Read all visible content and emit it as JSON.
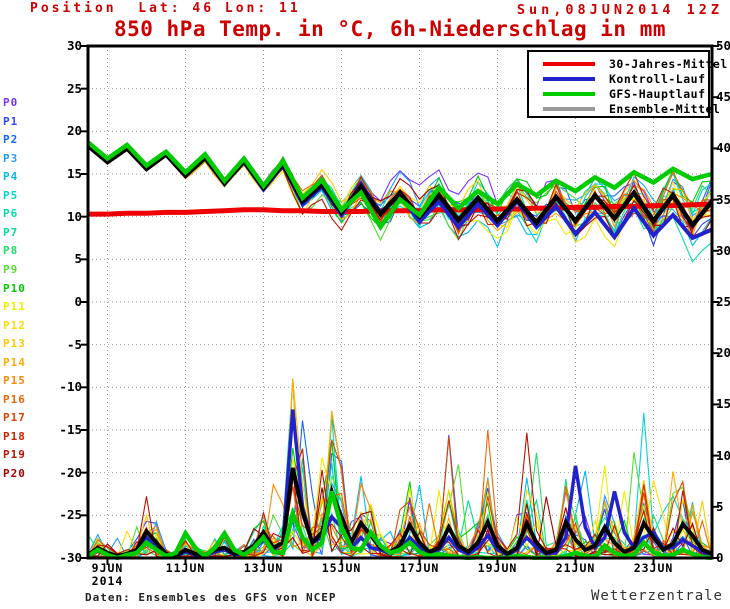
{
  "header": {
    "position_line": "Position  Lat: 46 Lon: 11",
    "datetime": "Sun,08JUN2014 12Z",
    "title": "850 hPa Temp. in °C, 6h-Niederschlag in mm",
    "text_color": "#cc0000"
  },
  "footer": {
    "source": "Daten: Ensembles des GFS von NCEP",
    "brand": "Wetterzentrale"
  },
  "legend": {
    "items": [
      {
        "label": "30-Jahres-Mittel",
        "color": "#ee0000"
      },
      {
        "label": "Kontroll-Lauf",
        "color": "#2222cc"
      },
      {
        "label": "GFS-Hauptlauf",
        "color": "#00cc00"
      },
      {
        "label": "Ensemble-Mittel",
        "color": "#999999"
      }
    ]
  },
  "members": {
    "labels": [
      "P0",
      "P1",
      "P2",
      "P3",
      "P4",
      "P5",
      "P6",
      "P7",
      "P8",
      "P9",
      "P10",
      "P11",
      "P12",
      "P13",
      "P14",
      "P15",
      "P16",
      "P17",
      "P18",
      "P19",
      "P20"
    ],
    "colors": [
      "#7733ff",
      "#3344ff",
      "#1166ff",
      "#2299ff",
      "#00bbee",
      "#00d5d5",
      "#00ddb0",
      "#00e090",
      "#22dd66",
      "#55dd33",
      "#00cc00",
      "#eeee00",
      "#ffdd00",
      "#ffc800",
      "#ffaa00",
      "#ff8800",
      "#f06600",
      "#e04400",
      "#cc2200",
      "#bb1100",
      "#a50000"
    ],
    "seed": 7
  },
  "chart_data": {
    "type": "line",
    "title": "850 hPa Temp. in °C, 6h-Niederschlag in mm",
    "x_start": "8JUN2014 12Z",
    "x_span_days": 16,
    "x_ticks": [
      "9JUN",
      "11JUN",
      "13JUN",
      "15JUN",
      "17JUN",
      "19JUN",
      "21JUN",
      "23JUN"
    ],
    "x_tick_year": "2014",
    "x_tick_day_offsets": [
      0.5,
      2.5,
      4.5,
      6.5,
      8.5,
      10.5,
      12.5,
      14.5
    ],
    "temp_axis": {
      "side": "left",
      "min": -30,
      "max": 30,
      "step": 5,
      "tick_labels": [
        "30",
        "25",
        "20",
        "15",
        "10",
        "5",
        "0",
        "-5",
        "-10",
        "-15",
        "-20",
        "-25",
        "-30"
      ]
    },
    "precip_axis": {
      "side": "right",
      "min": 0,
      "max": 50,
      "step": 5,
      "tick_labels": [
        "50",
        "45",
        "40",
        "35",
        "30",
        "25",
        "20",
        "15",
        "10",
        "5",
        "0"
      ]
    },
    "grid": true,
    "temp_series": [
      {
        "name": "30-Jahres-Mittel",
        "color": "#ee0000",
        "width": 5,
        "step_days": 0.5,
        "values": [
          10.3,
          10.3,
          10.4,
          10.4,
          10.5,
          10.5,
          10.6,
          10.7,
          10.8,
          10.8,
          10.7,
          10.7,
          10.6,
          10.6,
          10.6,
          10.7,
          10.7,
          10.7,
          10.8,
          10.8,
          10.8,
          10.9,
          10.9,
          11.0,
          11.0,
          11.1,
          11.1,
          11.2,
          11.2,
          11.3,
          11.3,
          11.4,
          11.5
        ]
      },
      {
        "name": "Kontroll-Lauf",
        "color": "#2222cc",
        "width": 4,
        "step_days": 0.5,
        "values": [
          18.4,
          16.5,
          18.1,
          15.7,
          17.4,
          14.9,
          17.0,
          14.0,
          16.4,
          13.2,
          16.0,
          11.5,
          13.5,
          10.2,
          13.8,
          10.5,
          12.5,
          9.4,
          11.8,
          8.8,
          11.5,
          9.0,
          11.8,
          8.8,
          11.2,
          8.0,
          10.5,
          7.6,
          11.0,
          7.8,
          10.2,
          7.5,
          8.5
        ]
      },
      {
        "name": "Ensemble-Mittel",
        "color": "#000000",
        "width": 4.5,
        "step_days": 0.5,
        "values": [
          18.3,
          16.4,
          18.0,
          15.6,
          17.3,
          14.8,
          16.9,
          13.9,
          16.5,
          13.4,
          16.2,
          11.8,
          13.8,
          10.5,
          13.5,
          10.3,
          12.8,
          10.0,
          12.5,
          9.6,
          12.2,
          9.5,
          12.0,
          9.3,
          12.3,
          9.5,
          12.5,
          9.8,
          12.8,
          9.5,
          12.5,
          9.0,
          11.8
        ]
      },
      {
        "name": "GFS-Hauptlauf",
        "color": "#00cc00",
        "width": 4.5,
        "step_days": 0.5,
        "values": [
          18.7,
          16.8,
          18.4,
          16.0,
          17.6,
          15.2,
          17.3,
          14.2,
          16.8,
          13.6,
          16.5,
          12.2,
          14.3,
          10.8,
          12.8,
          8.8,
          12.0,
          10.2,
          13.4,
          11.0,
          13.0,
          11.5,
          13.8,
          12.5,
          14.2,
          13.0,
          14.6,
          13.4,
          15.2,
          14.0,
          15.6,
          14.4,
          15.0
        ]
      }
    ],
    "ensemble_spread_temp": {
      "step_days": 0.5,
      "values": [
        0.2,
        0.2,
        0.2,
        0.25,
        0.3,
        0.35,
        0.4,
        0.5,
        0.6,
        0.8,
        1.0,
        1.3,
        1.7,
        2.0,
        2.2,
        2.3,
        2.4,
        2.5,
        2.6,
        2.7,
        2.8,
        2.8,
        2.9,
        3.0,
        3.0,
        3.1,
        3.1,
        3.2,
        3.2,
        3.3,
        3.4,
        3.5,
        3.6
      ]
    },
    "precip_series": [
      {
        "name": "Kontroll-Lauf",
        "color": "#2222cc",
        "width": 3.5,
        "step_days": 0.25,
        "values": [
          0.2,
          0.7,
          0.3,
          0.1,
          0.3,
          0.6,
          2.0,
          1.0,
          0.3,
          0.2,
          0.6,
          0.3,
          0.2,
          0.6,
          0.8,
          0.3,
          0.5,
          0.9,
          1.8,
          0.8,
          1.5,
          14.5,
          5.0,
          1.5,
          2.0,
          4.0,
          3.0,
          1.0,
          2.0,
          1.0,
          0.8,
          0.4,
          0.8,
          2.0,
          1.0,
          0.4,
          0.8,
          2.0,
          0.8,
          0.4,
          1.0,
          2.2,
          0.8,
          0.3,
          0.8,
          2.0,
          1.0,
          0.4,
          0.5,
          2.0,
          9.0,
          3.0,
          1.0,
          2.0,
          6.5,
          2.5,
          1.0,
          2.0,
          2.5,
          1.0,
          1.0,
          1.8,
          1.2,
          0.6,
          0.3
        ]
      },
      {
        "name": "Ensemble-Mittel",
        "color": "#000000",
        "width": 4,
        "step_days": 0.25,
        "values": [
          0.3,
          1.0,
          0.5,
          0.2,
          0.4,
          0.8,
          2.6,
          1.5,
          0.4,
          0.2,
          0.8,
          0.4,
          0.3,
          0.8,
          1.0,
          0.4,
          0.6,
          1.2,
          2.5,
          1.0,
          1.5,
          8.8,
          4.5,
          1.5,
          2.5,
          6.5,
          4.0,
          1.5,
          3.4,
          2.2,
          1.0,
          0.6,
          1.2,
          3.2,
          1.5,
          0.6,
          1.0,
          3.0,
          1.2,
          0.6,
          1.5,
          3.5,
          1.2,
          0.4,
          1.0,
          3.4,
          1.5,
          0.5,
          0.8,
          3.5,
          1.8,
          0.8,
          1.2,
          3.0,
          1.5,
          0.6,
          1.0,
          3.4,
          2.0,
          0.8,
          1.4,
          3.3,
          2.2,
          0.8,
          0.4
        ]
      },
      {
        "name": "GFS-Hauptlauf",
        "color": "#00cc00",
        "width": 4.5,
        "step_days": 0.25,
        "values": [
          0.2,
          0.8,
          0.3,
          0.0,
          0.3,
          0.5,
          1.5,
          0.8,
          0.2,
          0.5,
          2.4,
          1.0,
          0.2,
          1.0,
          2.4,
          0.8,
          0.3,
          1.0,
          2.0,
          0.6,
          0.5,
          4.3,
          2.0,
          0.8,
          1.5,
          6.5,
          3.0,
          1.0,
          0.8,
          2.5,
          1.2,
          0.5,
          0.8,
          1.5,
          0.6,
          0.2,
          0.4,
          0.2,
          0.1,
          0.0,
          0.1,
          0.0,
          0.0,
          0.0,
          0.2,
          0.1,
          0.0,
          0.0,
          0.0,
          0.2,
          0.5,
          0.2,
          0.1,
          1.2,
          0.5,
          0.2,
          0.3,
          1.5,
          0.6,
          0.2,
          0.3,
          0.8,
          0.4,
          0.1,
          0.0
        ]
      }
    ]
  }
}
